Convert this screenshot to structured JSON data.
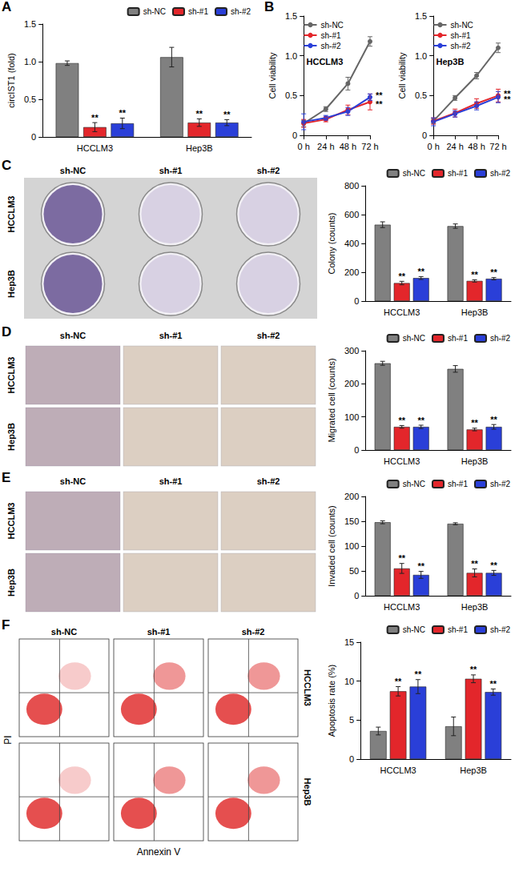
{
  "chart_data": [
    {
      "panel": "A",
      "type": "bar",
      "categories": [
        "HCCLM3",
        "Hep3B"
      ],
      "y_label": "circIST1 (fold)",
      "ylim": [
        0,
        1.5
      ],
      "yticks": [
        0,
        0.5,
        {
          "value": 1,
          "label": "1.0"
        },
        1.5
      ],
      "grid": false,
      "legend": "top",
      "series": [
        {
          "name": "sh-NC",
          "color": "#808080",
          "values": [
            0.98,
            1.06
          ],
          "errors": [
            0.03,
            0.13
          ],
          "significance": [
            null,
            null
          ]
        },
        {
          "name": "sh-#1",
          "color": "#e3262b",
          "values": [
            0.13,
            0.19
          ],
          "errors": [
            0.06,
            0.05
          ],
          "significance": [
            "**",
            "**"
          ]
        },
        {
          "name": "sh-#2",
          "color": "#2a3fd8",
          "values": [
            0.18,
            0.19
          ],
          "errors": [
            0.07,
            0.04
          ],
          "significance": [
            "**",
            "**"
          ]
        }
      ]
    },
    {
      "panel": "B",
      "type": "line",
      "title": "HCCLM3",
      "categories": [
        "0 h",
        "24 h",
        "48 h",
        "72 h"
      ],
      "y_label": "Cell viability",
      "ylim": [
        0,
        1.5
      ],
      "yticks": [
        0,
        0.5,
        {
          "value": 1,
          "label": "1.0"
        },
        1.5
      ],
      "grid": false,
      "legend": "top-left",
      "marker": "circle",
      "series": [
        {
          "name": "sh-NC",
          "color": "#666666",
          "values": [
            0.15,
            0.33,
            0.65,
            1.18
          ],
          "errors": [
            0.04,
            0.03,
            0.08,
            0.06
          ],
          "significance": [
            null,
            null,
            null,
            null
          ]
        },
        {
          "name": "sh-#1",
          "color": "#e3262b",
          "values": [
            0.15,
            0.2,
            0.32,
            0.42
          ],
          "errors": [
            0.05,
            0.03,
            0.06,
            0.1
          ],
          "significance": [
            null,
            null,
            null,
            "**"
          ]
        },
        {
          "name": "sh-#2",
          "color": "#2a3fd8",
          "values": [
            0.17,
            0.22,
            0.3,
            0.48
          ],
          "errors": [
            0.1,
            0.03,
            0.05,
            0.04
          ],
          "significance": [
            null,
            null,
            null,
            "**"
          ]
        }
      ]
    },
    {
      "type": "line",
      "title": "Hep3B",
      "categories": [
        "0 h",
        "24 h",
        "48 h",
        "72 h"
      ],
      "y_label": "Cell viability",
      "ylim": [
        0,
        1.5
      ],
      "yticks": [
        0,
        0.5,
        {
          "value": 1,
          "label": "1.0"
        },
        1.5
      ],
      "grid": false,
      "legend": "top-left",
      "marker": "circle",
      "series": [
        {
          "name": "sh-NC",
          "color": "#666666",
          "values": [
            0.18,
            0.47,
            0.75,
            1.1
          ],
          "errors": [
            0.03,
            0.03,
            0.04,
            0.06
          ],
          "significance": [
            null,
            null,
            null,
            null
          ]
        },
        {
          "name": "sh-#1",
          "color": "#e3262b",
          "values": [
            0.18,
            0.28,
            0.4,
            0.5
          ],
          "errors": [
            0.04,
            0.05,
            0.06,
            0.08
          ],
          "significance": [
            null,
            null,
            null,
            "**"
          ]
        },
        {
          "name": "sh-#2",
          "color": "#2a3fd8",
          "values": [
            0.17,
            0.27,
            0.37,
            0.48
          ],
          "errors": [
            0.05,
            0.04,
            0.05,
            0.07
          ],
          "significance": [
            null,
            null,
            null,
            "**"
          ]
        }
      ]
    },
    {
      "type": "bar",
      "categories": [
        "HCCLM3",
        "Hep3B"
      ],
      "y_label": "Colony (counts)",
      "ylim": [
        0,
        800
      ],
      "yticks": [
        0,
        200,
        400,
        600,
        800
      ],
      "grid": false,
      "legend": "top",
      "series": [
        {
          "name": "sh-NC",
          "color": "#808080",
          "values": [
            530,
            520
          ],
          "errors": [
            20,
            15
          ],
          "significance": [
            null,
            null
          ]
        },
        {
          "name": "sh-#1",
          "color": "#e3262b",
          "values": [
            125,
            140
          ],
          "errors": [
            12,
            8
          ],
          "significance": [
            "**",
            "**"
          ]
        },
        {
          "name": "sh-#2",
          "color": "#2a3fd8",
          "values": [
            160,
            155
          ],
          "errors": [
            10,
            8
          ],
          "significance": [
            "**",
            "**"
          ]
        }
      ]
    },
    {
      "type": "bar",
      "categories": [
        "HCCLM3",
        "Hep3B"
      ],
      "y_label": "Migrated cell (counts)",
      "ylim": [
        0,
        300
      ],
      "yticks": [
        0,
        100,
        200,
        300
      ],
      "grid": false,
      "legend": "top",
      "series": [
        {
          "name": "sh-NC",
          "color": "#808080",
          "values": [
            262,
            245
          ],
          "errors": [
            6,
            10
          ],
          "significance": [
            null,
            null
          ]
        },
        {
          "name": "sh-#1",
          "color": "#e3262b",
          "values": [
            70,
            62
          ],
          "errors": [
            4,
            4
          ],
          "significance": [
            "**",
            "**"
          ]
        },
        {
          "name": "sh-#2",
          "color": "#2a3fd8",
          "values": [
            70,
            70
          ],
          "errors": [
            5,
            7
          ],
          "significance": [
            "**",
            "**"
          ]
        }
      ]
    },
    {
      "type": "bar",
      "categories": [
        "HCCLM3",
        "Hep3B"
      ],
      "y_label": "Invaded cell (counts)",
      "ylim": [
        0,
        200
      ],
      "yticks": [
        0,
        50,
        100,
        150,
        200
      ],
      "grid": false,
      "legend": "top",
      "series": [
        {
          "name": "sh-NC",
          "color": "#808080",
          "values": [
            148,
            145
          ],
          "errors": [
            3,
            2
          ],
          "significance": [
            null,
            null
          ]
        },
        {
          "name": "sh-#1",
          "color": "#e3262b",
          "values": [
            55,
            46
          ],
          "errors": [
            10,
            8
          ],
          "significance": [
            "**",
            "**"
          ]
        },
        {
          "name": "sh-#2",
          "color": "#2a3fd8",
          "values": [
            42,
            46
          ],
          "errors": [
            7,
            5
          ],
          "significance": [
            "**",
            "**"
          ]
        }
      ]
    },
    {
      "type": "bar",
      "categories": [
        "HCCLM3",
        "Hep3B"
      ],
      "y_label": "Apoptosis rate (%)",
      "ylim": [
        0,
        15
      ],
      "yticks": [
        0,
        5,
        10,
        15
      ],
      "grid": false,
      "legend": "top",
      "series": [
        {
          "name": "sh-NC",
          "color": "#808080",
          "values": [
            3.6,
            4.2
          ],
          "errors": [
            0.5,
            1.2
          ],
          "significance": [
            null,
            null
          ]
        },
        {
          "name": "sh-#1",
          "color": "#e3262b",
          "values": [
            8.7,
            10.3
          ],
          "errors": [
            0.6,
            0.5
          ],
          "significance": [
            "**",
            "**"
          ]
        },
        {
          "name": "sh-#2",
          "color": "#2a3fd8",
          "values": [
            9.3,
            8.6
          ],
          "errors": [
            0.9,
            0.4
          ],
          "significance": [
            "**",
            "**"
          ]
        }
      ]
    }
  ],
  "image_panels": [
    {
      "panel": "C",
      "type": "plate_photo",
      "columns": [
        "sh-NC",
        "sh-#1",
        "sh-#2"
      ],
      "rows": [
        "HCCLM3",
        "Hep3B"
      ]
    },
    {
      "panel": "D",
      "type": "micrograph",
      "columns": [
        "sh-NC",
        "sh-#1",
        "sh-#2"
      ],
      "rows": [
        "HCCLM3",
        "Hep3B"
      ]
    },
    {
      "panel": "E",
      "type": "micrograph",
      "columns": [
        "sh-NC",
        "sh-#1",
        "sh-#2"
      ],
      "rows": [
        "HCCLM3",
        "Hep3B"
      ]
    },
    {
      "panel": "F",
      "type": "flow_cytometry",
      "columns": [
        "sh-NC",
        "sh-#1",
        "sh-#2"
      ],
      "rows": [
        "HCCLM3",
        "Hep3B"
      ],
      "x_label": "Annexin V",
      "y_label": "PI"
    }
  ]
}
